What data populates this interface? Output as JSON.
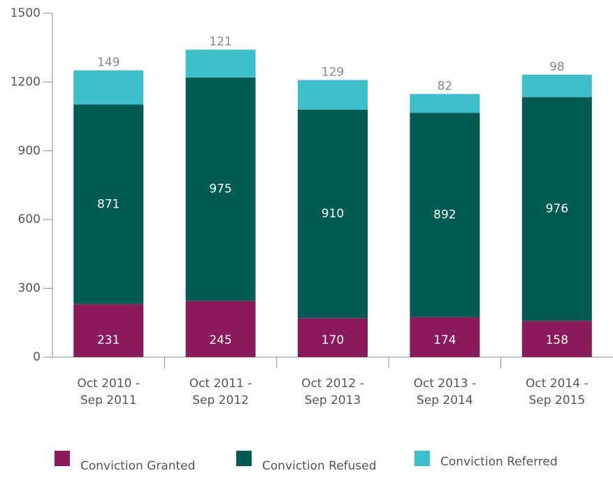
{
  "chart_data": {
    "type": "stacked_bar",
    "categories": [
      [
        "Oct 2010 -",
        "Sep 2011"
      ],
      [
        "Oct 2011 -",
        "Sep 2012"
      ],
      [
        "Oct 2012 -",
        "Sep 2013"
      ],
      [
        "Oct 2013 -",
        "Sep 2014"
      ],
      [
        "Oct 2014 -",
        "Sep 2015"
      ]
    ],
    "series": [
      {
        "name": "Conviction Granted",
        "color": "#8b1a5b",
        "values": [
          231,
          245,
          170,
          174,
          158
        ]
      },
      {
        "name": "Conviction Refused",
        "color": "#005c52",
        "values": [
          871,
          975,
          910,
          892,
          976
        ]
      },
      {
        "name": "Conviction Referred",
        "color": "#3dbfcc",
        "values": [
          149,
          121,
          129,
          82,
          98
        ]
      }
    ],
    "ylim": [
      0,
      1500
    ],
    "yticks": [
      0,
      300,
      600,
      900,
      1200,
      1500
    ],
    "grid": false,
    "legend": "bottom"
  }
}
